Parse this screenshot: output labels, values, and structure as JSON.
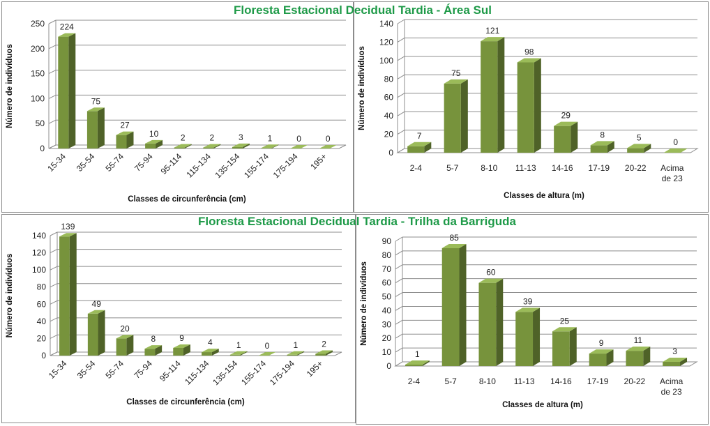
{
  "titles": {
    "top": "Floresta Estacional Decidual Tardia - Área Sul",
    "bottom": "Floresta Estacional Decidual Tardia - Trilha da Barriguda"
  },
  "colors": {
    "bar_front": "#77933c",
    "bar_side": "#4f6228",
    "bar_top": "#9bbb59",
    "title": "#1e9a48",
    "grid": "#8c8c8c"
  },
  "chart_data": [
    {
      "type": "bar",
      "title": "Floresta Estacional Decidual Tardia - Área Sul",
      "xlabel": "Classes de circunferência (cm)",
      "ylabel": "Número de indivíduos",
      "categories": [
        "15-34",
        "35-54",
        "55-74",
        "75-94",
        "95-114",
        "115-134",
        "135-154",
        "155-174",
        "175-194",
        "195+"
      ],
      "values": [
        224,
        75,
        27,
        10,
        2,
        2,
        3,
        1,
        0,
        0
      ],
      "ylim": [
        0,
        250
      ],
      "yticks": [
        0,
        50,
        100,
        150,
        200,
        250
      ],
      "grid": true
    },
    {
      "type": "bar",
      "title": "Floresta Estacional Decidual Tardia - Área Sul",
      "xlabel": "Classes de altura (m)",
      "ylabel": "Número de indivíduos",
      "categories": [
        "2-4",
        "5-7",
        "8-10",
        "11-13",
        "14-16",
        "17-19",
        "20-22",
        "Acima de 23"
      ],
      "values": [
        7,
        75,
        121,
        98,
        29,
        8,
        5,
        0
      ],
      "ylim": [
        0,
        140
      ],
      "yticks": [
        0,
        20,
        40,
        60,
        80,
        100,
        120,
        140
      ],
      "grid": true
    },
    {
      "type": "bar",
      "title": "Floresta Estacional Decidual Tardia - Trilha da Barriguda",
      "xlabel": "Classes de circunferência (cm)",
      "ylabel": "Número de indivíduos",
      "categories": [
        "15-34",
        "35-54",
        "55-74",
        "75-94",
        "95-114",
        "115-134",
        "135-154",
        "155-174",
        "175-194",
        "195+"
      ],
      "values": [
        139,
        49,
        20,
        8,
        9,
        4,
        1,
        0,
        1,
        2
      ],
      "ylim": [
        0,
        140
      ],
      "yticks": [
        0,
        20,
        40,
        60,
        80,
        100,
        120,
        140
      ],
      "grid": true
    },
    {
      "type": "bar",
      "title": "Floresta Estacional Decidual Tardia - Trilha da Barriguda",
      "xlabel": "Classes de altura (m)",
      "ylabel": "Número de indivíduos",
      "categories": [
        "2-4",
        "5-7",
        "8-10",
        "11-13",
        "14-16",
        "17-19",
        "20-22",
        "Acima de 23"
      ],
      "values": [
        1,
        85,
        60,
        39,
        25,
        9,
        11,
        3
      ],
      "ylim": [
        0,
        90
      ],
      "yticks": [
        0,
        10,
        20,
        30,
        40,
        50,
        60,
        70,
        80,
        90
      ],
      "grid": true
    }
  ]
}
